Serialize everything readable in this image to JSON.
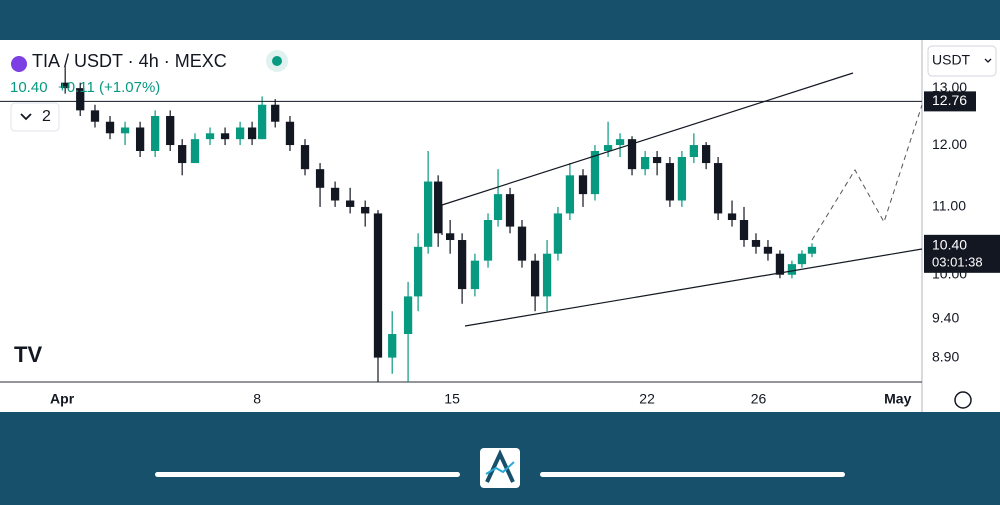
{
  "header": {
    "symbol": "TIA / USDT · 4h · MEXC",
    "price": "10.40",
    "change": "+0.11 (+1.07%)",
    "indicator_count": "2",
    "currency": "USDT"
  },
  "chart_data": {
    "type": "candlestick",
    "log_scale": true,
    "xlim": [
      -1.23,
      31.87
    ],
    "xticks": [
      {
        "value": 1,
        "label": "Apr"
      },
      8,
      15,
      22,
      26,
      {
        "value": 31,
        "label": "May"
      }
    ],
    "ylim": [
      8.6,
      13.91
    ],
    "yticks": [
      {
        "value": 13,
        "label": "13.00"
      },
      {
        "value": 12,
        "label": "12.00"
      },
      {
        "value": 11,
        "label": "11.00"
      },
      {
        "value": 10,
        "label": "10.00"
      },
      {
        "value": 9.4,
        "label": "9.40"
      },
      {
        "value": 8.9,
        "label": "8.90"
      }
    ],
    "up_color": "#089981",
    "down_color": "#131722",
    "x": [
      1.11,
      1.65,
      2.18,
      2.72,
      3.26,
      3.8,
      4.34,
      4.88,
      5.31,
      5.77,
      6.31,
      6.85,
      7.39,
      7.82,
      8.18,
      8.65,
      9.18,
      9.72,
      10.26,
      10.8,
      11.34,
      11.88,
      12.34,
      12.85,
      13.42,
      13.78,
      14.14,
      14.5,
      14.93,
      15.36,
      15.82,
      16.29,
      16.65,
      17.08,
      17.51,
      17.98,
      18.41,
      18.8,
      19.23,
      19.7,
      20.13,
      20.6,
      21.03,
      21.46,
      21.93,
      22.36,
      22.82,
      23.25,
      23.68,
      24.12,
      24.55,
      25.05,
      25.48,
      25.91,
      26.34,
      26.77,
      27.2,
      27.56,
      27.92
    ],
    "open": [
      13.1,
      13.0,
      12.6,
      12.4,
      12.2,
      12.3,
      11.9,
      12.5,
      12.0,
      11.7,
      12.1,
      12.2,
      12.1,
      12.3,
      12.1,
      12.7,
      12.4,
      12.0,
      11.6,
      11.3,
      11.1,
      11.0,
      10.9,
      8.9,
      9.2,
      9.7,
      10.4,
      11.4,
      10.6,
      10.5,
      9.8,
      10.2,
      10.8,
      11.2,
      10.7,
      10.2,
      9.7,
      10.3,
      10.9,
      11.5,
      11.2,
      11.9,
      12.0,
      12.1,
      11.6,
      11.8,
      11.7,
      11.1,
      11.8,
      12.0,
      11.7,
      10.9,
      10.8,
      10.5,
      10.4,
      10.3,
      10.0,
      10.15,
      10.3
    ],
    "high": [
      13.4,
      13.1,
      12.7,
      12.5,
      12.4,
      12.4,
      12.6,
      12.6,
      12.1,
      12.2,
      12.3,
      12.3,
      12.4,
      12.4,
      12.85,
      12.8,
      12.5,
      12.1,
      11.7,
      11.4,
      11.3,
      11.1,
      10.95,
      9.5,
      9.9,
      10.6,
      11.9,
      11.5,
      10.8,
      10.6,
      10.3,
      10.9,
      11.6,
      11.3,
      10.8,
      10.3,
      10.5,
      11.0,
      11.7,
      11.6,
      12.0,
      12.4,
      12.2,
      12.15,
      11.9,
      11.9,
      11.8,
      11.9,
      12.2,
      12.05,
      11.8,
      11.1,
      11.0,
      10.6,
      10.5,
      10.35,
      10.2,
      10.35,
      10.45
    ],
    "low": [
      12.9,
      12.5,
      12.3,
      12.1,
      12.0,
      11.8,
      11.8,
      11.9,
      11.5,
      11.7,
      12.0,
      12.0,
      12.0,
      12.0,
      12.1,
      12.3,
      11.9,
      11.5,
      11.0,
      11.0,
      10.9,
      10.7,
      8.6,
      8.7,
      8.6,
      9.5,
      10.3,
      10.4,
      10.3,
      9.6,
      9.7,
      10.1,
      10.7,
      10.6,
      10.1,
      9.5,
      9.5,
      10.2,
      10.8,
      11.0,
      11.1,
      11.8,
      11.8,
      11.5,
      11.5,
      11.5,
      11.0,
      11.0,
      11.7,
      11.6,
      10.8,
      10.7,
      10.4,
      10.3,
      10.2,
      9.95,
      9.95,
      10.1,
      10.25
    ],
    "close": [
      13.0,
      12.6,
      12.4,
      12.2,
      12.3,
      11.9,
      12.5,
      12.0,
      11.7,
      12.1,
      12.2,
      12.1,
      12.3,
      12.1,
      12.7,
      12.4,
      12.0,
      11.6,
      11.3,
      11.1,
      11.0,
      10.9,
      8.9,
      9.2,
      9.7,
      10.4,
      11.4,
      10.6,
      10.5,
      9.8,
      10.2,
      10.8,
      11.2,
      10.7,
      10.2,
      9.7,
      10.3,
      10.9,
      11.5,
      11.2,
      11.9,
      12.0,
      12.1,
      11.6,
      11.8,
      11.7,
      11.1,
      11.8,
      12.0,
      11.7,
      10.9,
      10.8,
      10.5,
      10.4,
      10.3,
      10.0,
      10.15,
      10.3,
      10.4
    ],
    "horizontal_line": {
      "value": 12.76
    },
    "last_price": {
      "value": 10.4,
      "value_label": "10.40",
      "countdown": "03:01:38"
    }
  }
}
